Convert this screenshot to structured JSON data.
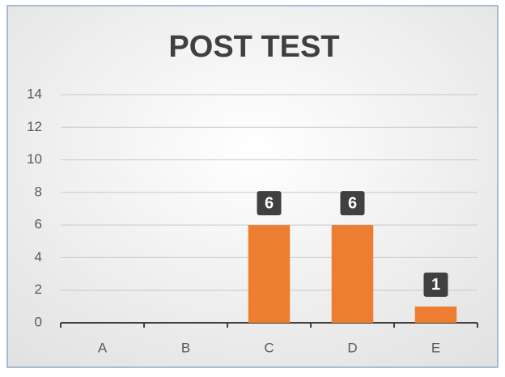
{
  "chart_data": {
    "type": "bar",
    "title": "POST TEST",
    "categories": [
      "A",
      "B",
      "C",
      "D",
      "E"
    ],
    "values": [
      0,
      0,
      6,
      6,
      1
    ],
    "color": "#ed7d31",
    "ylim": [
      0,
      14
    ],
    "yticks": [
      0,
      2,
      4,
      6,
      8,
      10,
      12,
      14
    ],
    "grid": true
  }
}
